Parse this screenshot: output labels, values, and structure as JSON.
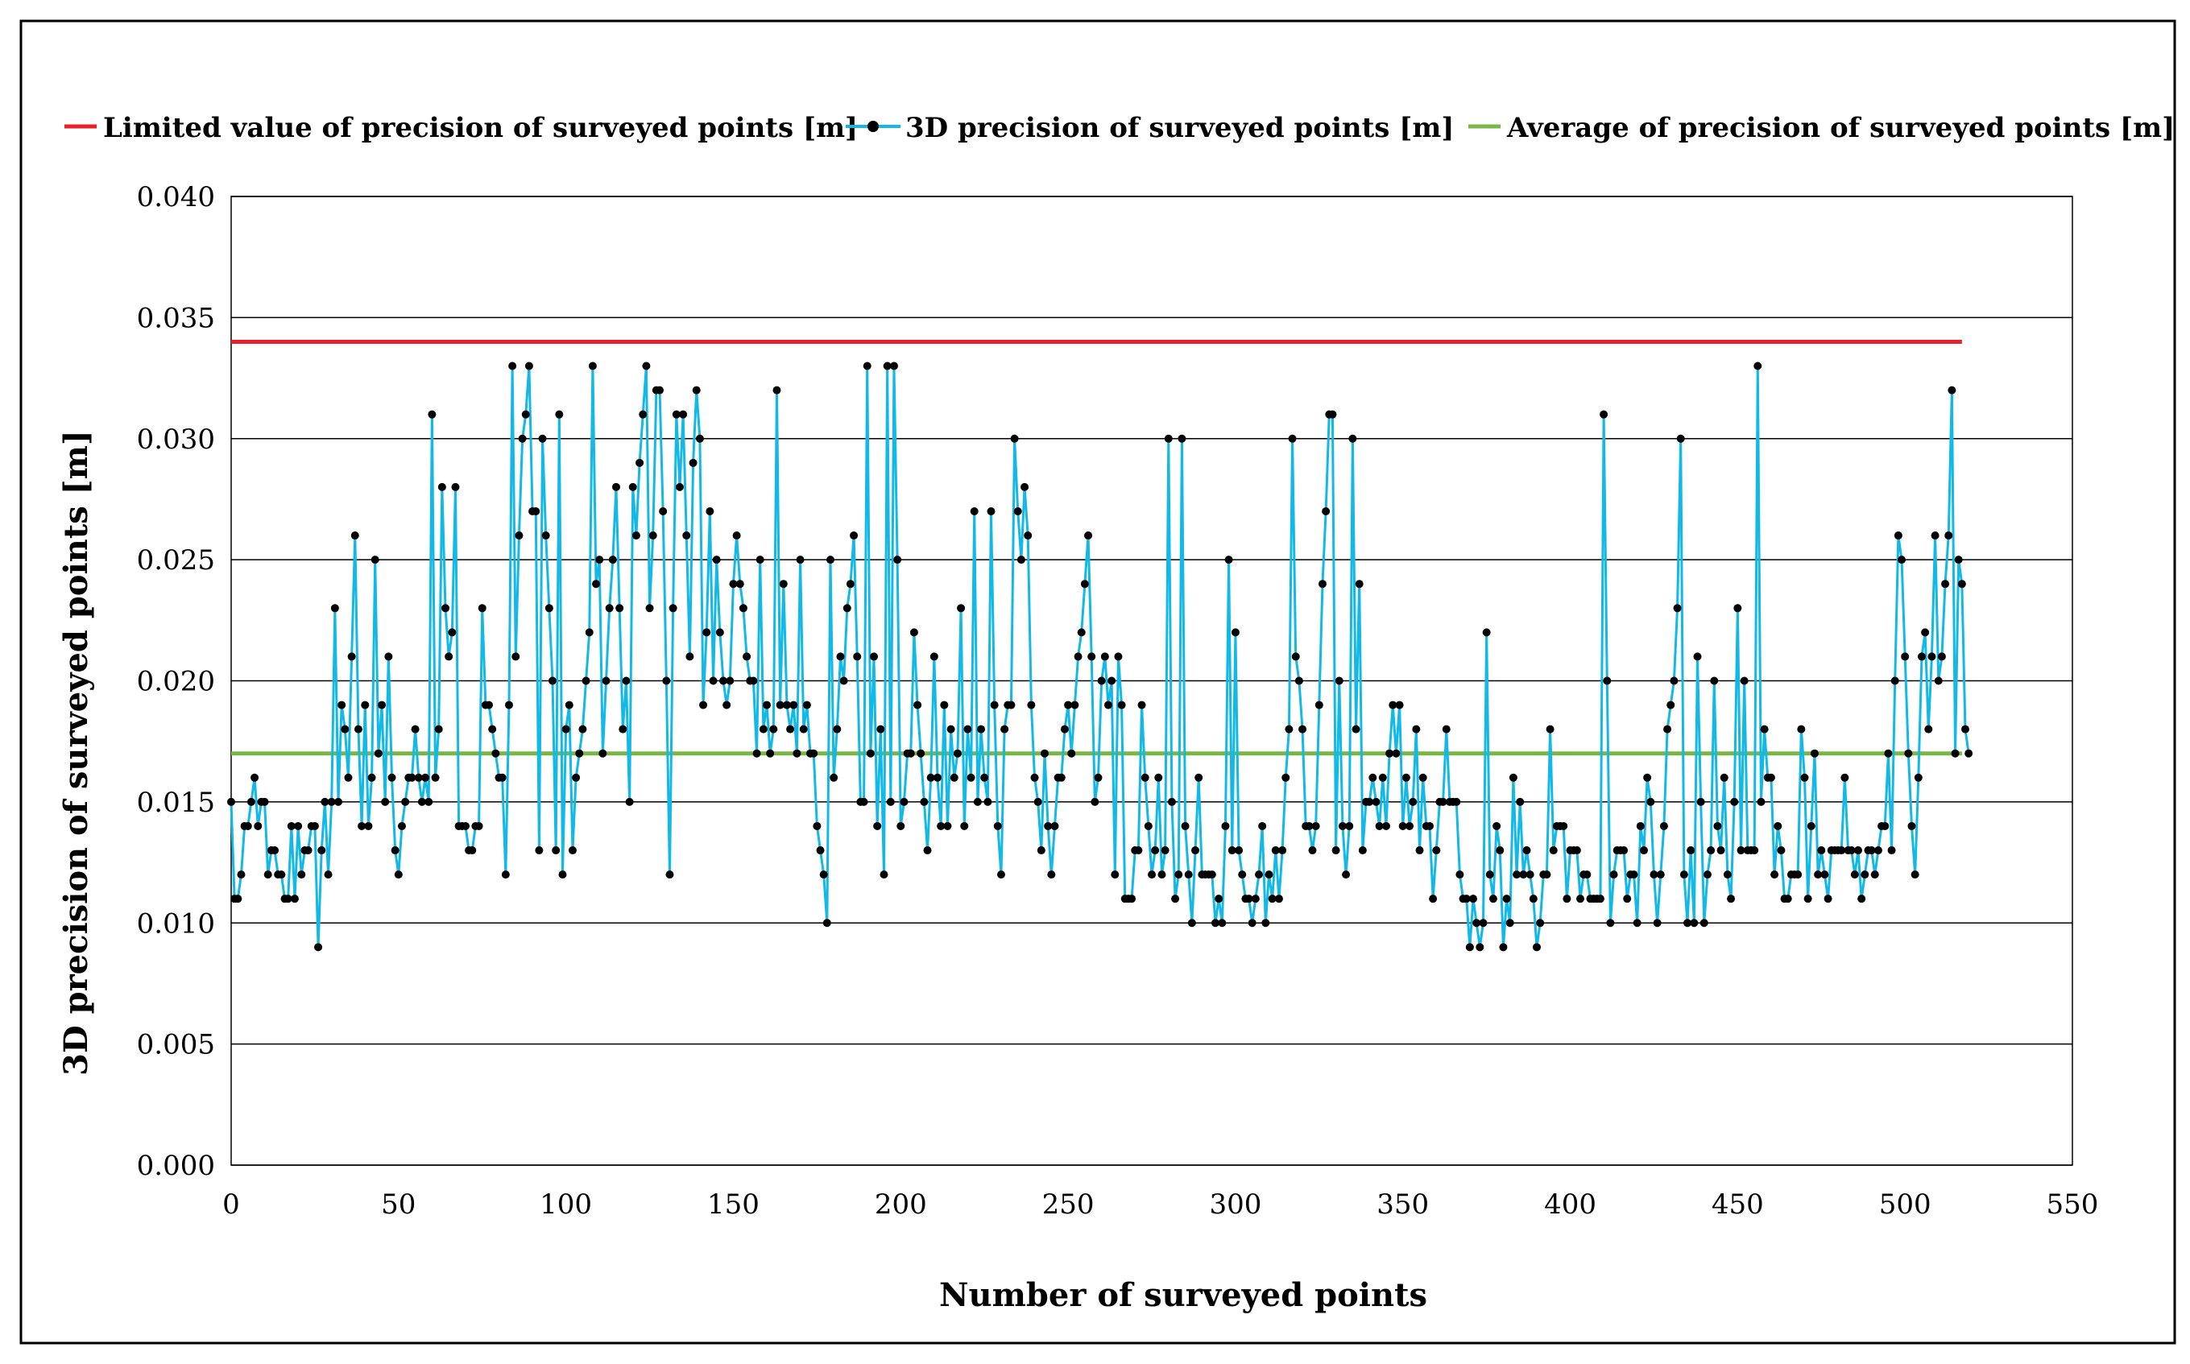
{
  "colors": {
    "limit": "#e8202a",
    "precision_line": "#12b8e6",
    "marker": "#000000",
    "average": "#7ab646",
    "grid": "#000000",
    "frame": "#000000"
  },
  "chart_data": {
    "type": "line",
    "title": "",
    "xlabel": "Number of surveyed points",
    "ylabel": "3D precision of surveyed points [m]",
    "xlim": [
      0,
      550
    ],
    "ylim": [
      0.0,
      0.04
    ],
    "xticks": [
      "0",
      "50",
      "100",
      "150",
      "200",
      "250",
      "300",
      "350",
      "400",
      "450",
      "500",
      "550"
    ],
    "yticks": [
      "0.000",
      "0.005",
      "0.010",
      "0.015",
      "0.020",
      "0.025",
      "0.030",
      "0.035",
      "0.040"
    ],
    "grid": "horizontal",
    "legend": "top",
    "series": [
      {
        "name": "Limited value of precision of surveyed points [m]",
        "kind": "constant",
        "x": [
          0,
          517
        ],
        "values": [
          0.034,
          0.034
        ]
      },
      {
        "name": "3D precision of surveyed points [m]",
        "kind": "measured",
        "x_start": 0,
        "values": [
          0.015,
          0.011,
          0.011,
          0.012,
          0.014,
          0.014,
          0.015,
          0.016,
          0.014,
          0.015,
          0.015,
          0.012,
          0.013,
          0.013,
          0.012,
          0.012,
          0.011,
          0.011,
          0.014,
          0.011,
          0.014,
          0.012,
          0.013,
          0.013,
          0.014,
          0.014,
          0.009,
          0.013,
          0.015,
          0.012,
          0.015,
          0.023,
          0.015,
          0.019,
          0.018,
          0.016,
          0.021,
          0.026,
          0.018,
          0.014,
          0.019,
          0.014,
          0.016,
          0.025,
          0.017,
          0.019,
          0.015,
          0.021,
          0.016,
          0.013,
          0.012,
          0.014,
          0.015,
          0.016,
          0.016,
          0.018,
          0.016,
          0.015,
          0.016,
          0.015,
          0.031,
          0.016,
          0.018,
          0.028,
          0.023,
          0.021,
          0.022,
          0.028,
          0.014,
          0.014,
          0.014,
          0.013,
          0.013,
          0.014,
          0.014,
          0.023,
          0.019,
          0.019,
          0.018,
          0.017,
          0.016,
          0.016,
          0.012,
          0.019,
          0.033,
          0.021,
          0.026,
          0.03,
          0.031,
          0.033,
          0.027,
          0.027,
          0.013,
          0.03,
          0.026,
          0.023,
          0.02,
          0.013,
          0.031,
          0.012,
          0.018,
          0.019,
          0.013,
          0.016,
          0.017,
          0.018,
          0.02,
          0.022,
          0.033,
          0.024,
          0.025,
          0.017,
          0.02,
          0.023,
          0.025,
          0.028,
          0.023,
          0.018,
          0.02,
          0.015,
          0.028,
          0.026,
          0.029,
          0.031,
          0.033,
          0.023,
          0.026,
          0.032,
          0.032,
          0.027,
          0.02,
          0.012,
          0.023,
          0.031,
          0.028,
          0.031,
          0.026,
          0.021,
          0.029,
          0.032,
          0.03,
          0.019,
          0.022,
          0.027,
          0.02,
          0.025,
          0.022,
          0.02,
          0.019,
          0.02,
          0.024,
          0.026,
          0.024,
          0.023,
          0.021,
          0.02,
          0.02,
          0.017,
          0.025,
          0.018,
          0.019,
          0.017,
          0.018,
          0.032,
          0.019,
          0.024,
          0.019,
          0.018,
          0.019,
          0.017,
          0.025,
          0.018,
          0.019,
          0.017,
          0.017,
          0.014,
          0.013,
          0.012,
          0.01,
          0.025,
          0.016,
          0.018,
          0.021,
          0.02,
          0.023,
          0.024,
          0.026,
          0.021,
          0.015,
          0.015,
          0.033,
          0.017,
          0.021,
          0.014,
          0.018,
          0.012,
          0.033,
          0.015,
          0.033,
          0.025,
          0.014,
          0.015,
          0.017,
          0.017,
          0.022,
          0.019,
          0.017,
          0.015,
          0.013,
          0.016,
          0.021,
          0.016,
          0.014,
          0.019,
          0.014,
          0.018,
          0.016,
          0.017,
          0.023,
          0.014,
          0.018,
          0.016,
          0.027,
          0.015,
          0.018,
          0.016,
          0.015,
          0.027,
          0.019,
          0.014,
          0.012,
          0.018,
          0.019,
          0.019,
          0.03,
          0.027,
          0.025,
          0.028,
          0.026,
          0.019,
          0.016,
          0.015,
          0.013,
          0.017,
          0.014,
          0.012,
          0.014,
          0.016,
          0.016,
          0.018,
          0.019,
          0.017,
          0.019,
          0.021,
          0.022,
          0.024,
          0.026,
          0.021,
          0.015,
          0.016,
          0.02,
          0.021,
          0.019,
          0.02,
          0.012,
          0.021,
          0.019,
          0.011,
          0.011,
          0.011,
          0.013,
          0.013,
          0.019,
          0.016,
          0.014,
          0.012,
          0.013,
          0.016,
          0.012,
          0.013,
          0.03,
          0.015,
          0.011,
          0.012,
          0.03,
          0.014,
          0.012,
          0.01,
          0.013,
          0.016,
          0.012,
          0.012,
          0.012,
          0.012,
          0.01,
          0.011,
          0.01,
          0.014,
          0.025,
          0.013,
          0.022,
          0.013,
          0.012,
          0.011,
          0.011,
          0.01,
          0.011,
          0.012,
          0.014,
          0.01,
          0.012,
          0.011,
          0.013,
          0.011,
          0.013,
          0.016,
          0.018,
          0.03,
          0.021,
          0.02,
          0.018,
          0.014,
          0.014,
          0.013,
          0.014,
          0.019,
          0.024,
          0.027,
          0.031,
          0.031,
          0.013,
          0.02,
          0.014,
          0.012,
          0.014,
          0.03,
          0.018,
          0.024,
          0.013,
          0.015,
          0.015,
          0.016,
          0.015,
          0.014,
          0.016,
          0.014,
          0.017,
          0.019,
          0.017,
          0.019,
          0.014,
          0.016,
          0.014,
          0.015,
          0.018,
          0.013,
          0.016,
          0.014,
          0.014,
          0.011,
          0.013,
          0.015,
          0.015,
          0.018,
          0.015,
          0.015,
          0.015,
          0.012,
          0.011,
          0.011,
          0.009,
          0.011,
          0.01,
          0.009,
          0.01,
          0.022,
          0.012,
          0.011,
          0.014,
          0.013,
          0.009,
          0.011,
          0.01,
          0.016,
          0.012,
          0.015,
          0.012,
          0.013,
          0.012,
          0.011,
          0.009,
          0.01,
          0.012,
          0.012,
          0.018,
          0.013,
          0.014,
          0.014,
          0.014,
          0.011,
          0.013,
          0.013,
          0.013,
          0.011,
          0.012,
          0.012,
          0.011,
          0.011,
          0.011,
          0.011,
          0.031,
          0.02,
          0.01,
          0.012,
          0.013,
          0.013,
          0.013,
          0.011,
          0.012,
          0.012,
          0.01,
          0.014,
          0.013,
          0.016,
          0.015,
          0.012,
          0.01,
          0.012,
          0.014,
          0.018,
          0.019,
          0.02,
          0.023,
          0.03,
          0.012,
          0.01,
          0.013,
          0.01,
          0.021,
          0.015,
          0.01,
          0.012,
          0.013,
          0.02,
          0.014,
          0.013,
          0.016,
          0.012,
          0.011,
          0.015,
          0.023,
          0.013,
          0.02,
          0.013,
          0.013,
          0.013,
          0.033,
          0.015,
          0.018,
          0.016,
          0.016,
          0.012,
          0.014,
          0.013,
          0.011,
          0.011,
          0.012,
          0.012,
          0.012,
          0.018,
          0.016,
          0.011,
          0.014,
          0.017,
          0.012,
          0.013,
          0.012,
          0.011,
          0.013,
          0.013,
          0.013,
          0.013,
          0.016,
          0.013,
          0.013,
          0.012,
          0.013,
          0.011,
          0.012,
          0.013,
          0.013,
          0.012,
          0.013,
          0.014,
          0.014,
          0.017,
          0.013,
          0.02,
          0.026,
          0.025,
          0.021,
          0.017,
          0.014,
          0.012,
          0.016,
          0.021,
          0.022,
          0.018,
          0.021,
          0.026,
          0.02,
          0.021,
          0.024,
          0.026,
          0.032,
          0.017,
          0.025,
          0.024,
          0.018,
          0.017
        ]
      },
      {
        "name": "Average of precision of surveyed points [m]",
        "kind": "constant",
        "x": [
          0,
          517
        ],
        "values": [
          0.017,
          0.017
        ]
      }
    ]
  }
}
